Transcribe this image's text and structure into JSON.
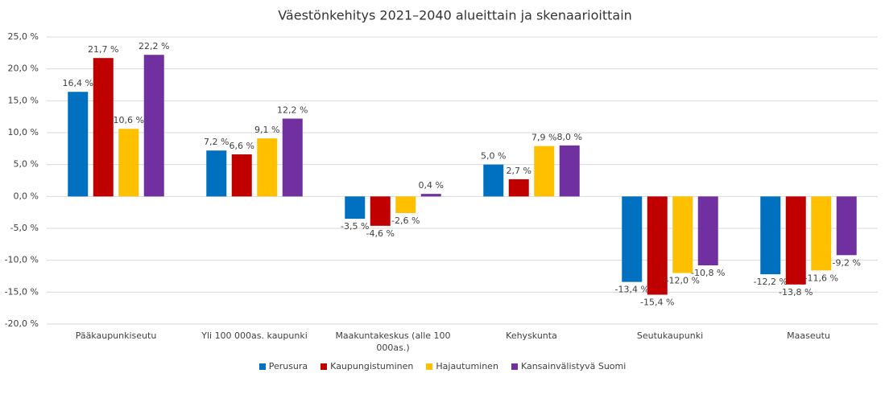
{
  "chart_data": {
    "type": "bar",
    "title": "Väestönkehitys 2021–2040 alueittain ja skenaarioittain",
    "categories": [
      "Pääkaupunkiseutu",
      "Yli 100 000as. kaupunki",
      "Maakuntakeskus (alle 100 000as.)",
      "Kehyskunta",
      "Seutukaupunki",
      "Maaseutu"
    ],
    "series": [
      {
        "name": "Perusura",
        "color": "#0070c0",
        "values": [
          16.4,
          7.2,
          -3.5,
          5.0,
          -13.4,
          -12.2
        ],
        "value_labels": [
          "16,4 %",
          "7,2 %",
          "-3,5 %",
          "5,0 %",
          "-13,4 %",
          "-12,2 %"
        ]
      },
      {
        "name": "Kaupungistuminen",
        "color": "#c00000",
        "values": [
          21.7,
          6.6,
          -4.6,
          2.7,
          -15.4,
          -13.8
        ],
        "value_labels": [
          "21,7 %",
          "6,6 %",
          "-4,6 %",
          "2,7 %",
          "-15,4 %",
          "-13,8 %"
        ]
      },
      {
        "name": "Hajautuminen",
        "color": "#ffc000",
        "values": [
          10.6,
          9.1,
          -2.6,
          7.9,
          -12.0,
          -11.6
        ],
        "value_labels": [
          "10,6 %",
          "9,1 %",
          "-2,6 %",
          "7,9 %",
          "-12,0 %",
          "-11,6 %"
        ]
      },
      {
        "name": "Kansainvälistyvä Suomi",
        "color": "#7030a0",
        "values": [
          22.2,
          12.2,
          0.4,
          8.0,
          -10.8,
          -9.2
        ],
        "value_labels": [
          "22,2 %",
          "12,2 %",
          "0,4 %",
          "8,0 %",
          "-10,8 %",
          "-9,2 %"
        ]
      }
    ],
    "ylim": [
      -20,
      25
    ],
    "yticks": [
      {
        "value": -20,
        "label": "-20,0 %"
      },
      {
        "value": -15,
        "label": "-15,0 %"
      },
      {
        "value": -10,
        "label": "-10,0 %"
      },
      {
        "value": -5,
        "label": "-5,0 %"
      },
      {
        "value": 0,
        "label": "0,0 %"
      },
      {
        "value": 5,
        "label": "5,0 %"
      },
      {
        "value": 10,
        "label": "10,0 %"
      },
      {
        "value": 15,
        "label": "15,0 %"
      },
      {
        "value": 20,
        "label": "20,0 %"
      },
      {
        "value": 25,
        "label": "25,0 %"
      }
    ],
    "grid": true,
    "legend": "bottom"
  }
}
